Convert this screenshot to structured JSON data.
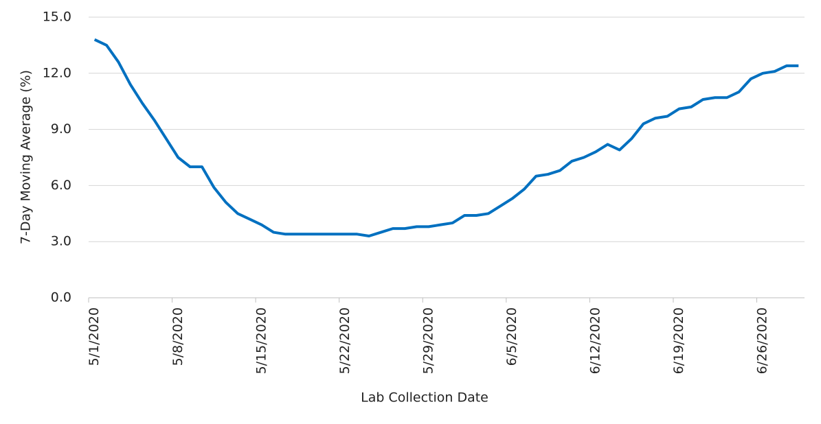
{
  "chart_data": {
    "type": "line",
    "x_label": "Lab Collection Date",
    "y_label": "7-Day Moving Average (%)",
    "categories": [
      "5/1/2020",
      null,
      null,
      null,
      null,
      null,
      null,
      "5/8/2020",
      null,
      null,
      null,
      null,
      null,
      null,
      "5/15/2020",
      null,
      null,
      null,
      null,
      null,
      null,
      "5/22/2020",
      null,
      null,
      null,
      null,
      null,
      null,
      "5/29/2020",
      null,
      null,
      null,
      null,
      null,
      null,
      "6/5/2020",
      null,
      null,
      null,
      null,
      null,
      null,
      "6/12/2020",
      null,
      null,
      null,
      null,
      null,
      null,
      "6/19/2020",
      null,
      null,
      null,
      null,
      null,
      null,
      "6/26/2020",
      null,
      null,
      null
    ],
    "series": [
      {
        "color": "#0070c0",
        "values": [
          13.8,
          13.5,
          12.6,
          11.4,
          10.4,
          9.5,
          8.5,
          7.5,
          7.0,
          7.0,
          5.9,
          5.1,
          4.5,
          4.2,
          3.9,
          3.5,
          3.4,
          3.4,
          3.4,
          3.4,
          3.4,
          3.4,
          3.4,
          3.3,
          3.5,
          3.7,
          3.7,
          3.8,
          3.8,
          3.9,
          4.0,
          4.4,
          4.4,
          4.5,
          4.9,
          5.3,
          5.8,
          6.5,
          6.6,
          6.8,
          7.3,
          7.5,
          7.8,
          8.2,
          7.9,
          8.5,
          9.3,
          9.6,
          9.7,
          10.1,
          10.2,
          10.6,
          10.7,
          10.7,
          11.0,
          11.7,
          12.0,
          12.1,
          12.4,
          12.4
        ]
      }
    ],
    "ylim": [
      0,
      15
    ],
    "yticks": [
      {
        "value": 0,
        "label": "0.0"
      },
      {
        "value": 3,
        "label": "3.0"
      },
      {
        "value": 6,
        "label": "6.0"
      },
      {
        "value": 9,
        "label": "9.0"
      },
      {
        "value": 12,
        "label": "12.0"
      },
      {
        "value": 15,
        "label": "15.0"
      }
    ],
    "grid": true
  }
}
